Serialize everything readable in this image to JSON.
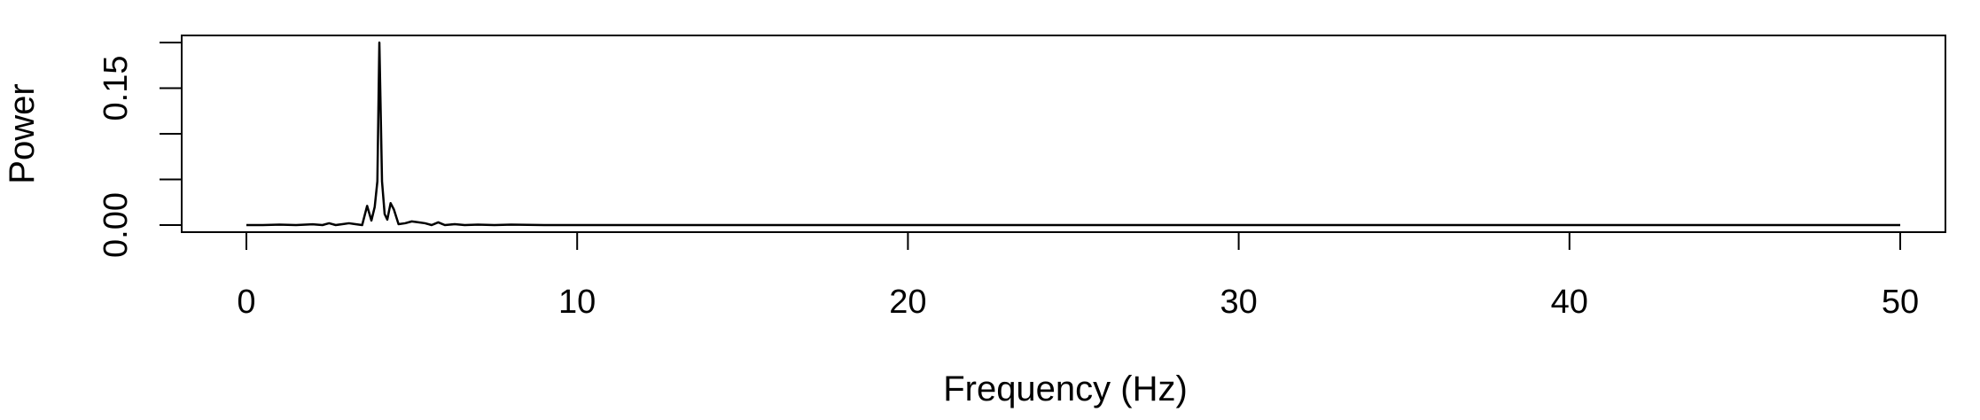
{
  "chart_data": {
    "type": "line",
    "title": "",
    "xlabel": "Frequency (Hz)",
    "ylabel": "Power",
    "xlim": [
      0,
      50
    ],
    "ylim": [
      0,
      0.2
    ],
    "x_ticks": [
      0,
      10,
      20,
      30,
      40,
      50
    ],
    "x_tick_labels": [
      "0",
      "10",
      "20",
      "30",
      "40",
      "50"
    ],
    "y_ticks": [
      0,
      0.05,
      0.1,
      0.15,
      0.2
    ],
    "y_tick_labels": [
      "0.00",
      "",
      "",
      "0.15",
      ""
    ],
    "grid": false,
    "legend": "none",
    "series": [
      {
        "color": "#000000",
        "points": [
          [
            0,
            0.0
          ],
          [
            0.5,
            0.0
          ],
          [
            1.0,
            0.0005
          ],
          [
            1.5,
            0.0
          ],
          [
            2.0,
            0.0008
          ],
          [
            2.3,
            0.0
          ],
          [
            2.5,
            0.002
          ],
          [
            2.7,
            0.0
          ],
          [
            2.9,
            0.001
          ],
          [
            3.1,
            0.002
          ],
          [
            3.3,
            0.001
          ],
          [
            3.5,
            0.0
          ],
          [
            3.65,
            0.021
          ],
          [
            3.78,
            0.005
          ],
          [
            3.88,
            0.02
          ],
          [
            3.96,
            0.048
          ],
          [
            4.02,
            0.2
          ],
          [
            4.1,
            0.048
          ],
          [
            4.18,
            0.012
          ],
          [
            4.26,
            0.006
          ],
          [
            4.36,
            0.024
          ],
          [
            4.46,
            0.017
          ],
          [
            4.6,
            0.001
          ],
          [
            4.8,
            0.002
          ],
          [
            5.0,
            0.004
          ],
          [
            5.2,
            0.003
          ],
          [
            5.4,
            0.002
          ],
          [
            5.6,
            0.0
          ],
          [
            5.8,
            0.003
          ],
          [
            6.0,
            0.0
          ],
          [
            6.3,
            0.001
          ],
          [
            6.6,
            0.0
          ],
          [
            7.0,
            0.0005
          ],
          [
            7.5,
            0.0
          ],
          [
            8.0,
            0.0005
          ],
          [
            9.0,
            0.0
          ],
          [
            10,
            0.0
          ],
          [
            15,
            0.0
          ],
          [
            20,
            0.0
          ],
          [
            30,
            0.0
          ],
          [
            40,
            0.0
          ],
          [
            50,
            0.0
          ]
        ]
      }
    ]
  }
}
